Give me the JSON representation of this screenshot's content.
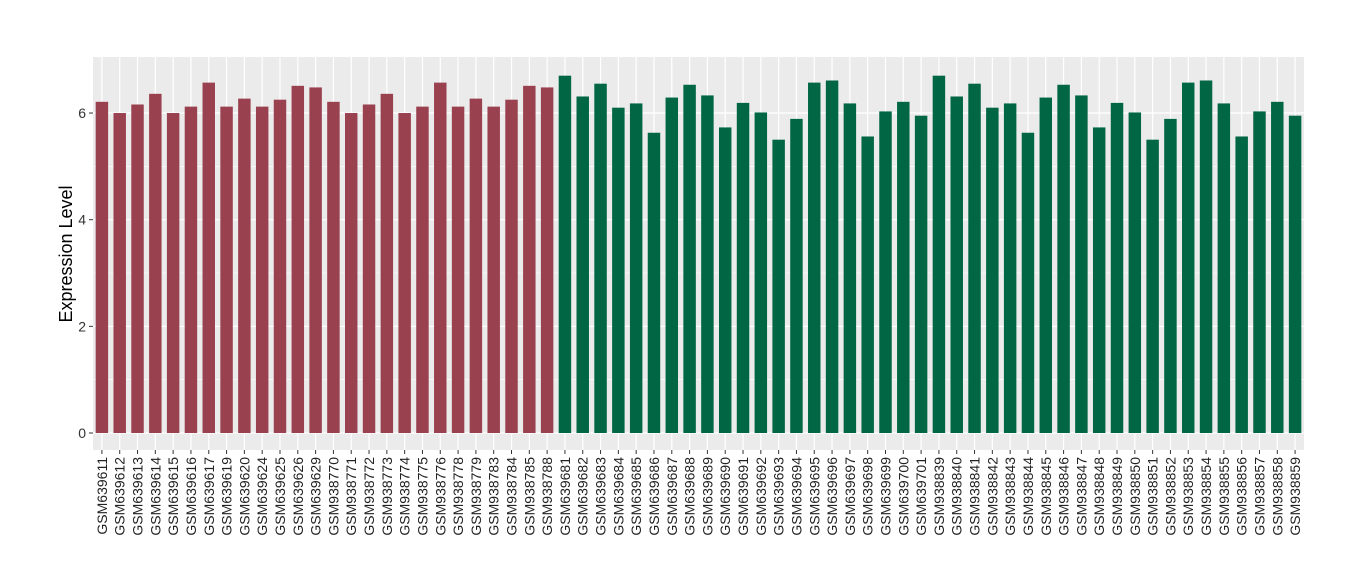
{
  "chart_data": {
    "type": "bar",
    "title": "",
    "xlabel": "",
    "ylabel": "Expression Level",
    "ylim": [
      0,
      7
    ],
    "yticks": [
      0,
      2,
      4,
      6
    ],
    "grid": true,
    "colors": {
      "group1": "#9a4150",
      "group2": "#006644",
      "panel": "#ebebeb",
      "grid": "#ffffff"
    },
    "categories": [
      "GSM639611",
      "GSM639612",
      "GSM639613",
      "GSM639614",
      "GSM639615",
      "GSM639616",
      "GSM639617",
      "GSM639619",
      "GSM639620",
      "GSM639624",
      "GSM639625",
      "GSM639626",
      "GSM639629",
      "GSM938770",
      "GSM938771",
      "GSM938772",
      "GSM938773",
      "GSM938774",
      "GSM938775",
      "GSM938776",
      "GSM938778",
      "GSM938779",
      "GSM938783",
      "GSM938784",
      "GSM938785",
      "GSM938788",
      "GSM639681",
      "GSM639682",
      "GSM639683",
      "GSM639684",
      "GSM639685",
      "GSM639686",
      "GSM639687",
      "GSM639688",
      "GSM639689",
      "GSM639690",
      "GSM639691",
      "GSM639692",
      "GSM639693",
      "GSM639694",
      "GSM639695",
      "GSM639696",
      "GSM639697",
      "GSM639698",
      "GSM639699",
      "GSM639700",
      "GSM639701",
      "GSM938839",
      "GSM938840",
      "GSM938841",
      "GSM938842",
      "GSM938843",
      "GSM938844",
      "GSM938845",
      "GSM938846",
      "GSM938847",
      "GSM938848",
      "GSM938849",
      "GSM938850",
      "GSM938851",
      "GSM938852",
      "GSM938853",
      "GSM938854",
      "GSM938855",
      "GSM938856",
      "GSM938857",
      "GSM938858",
      "GSM938859"
    ],
    "values": [
      6.21,
      6.0,
      6.16,
      6.36,
      6.0,
      6.12,
      6.57,
      6.12,
      6.27,
      6.12,
      6.25,
      6.51,
      6.48,
      6.21,
      6.0,
      6.16,
      6.36,
      6.0,
      6.12,
      6.57,
      6.12,
      6.27,
      6.12,
      6.25,
      6.51,
      6.48,
      6.7,
      6.31,
      6.55,
      6.1,
      6.18,
      5.63,
      6.29,
      6.53,
      6.33,
      5.73,
      6.19,
      6.01,
      5.5,
      5.89,
      6.57,
      6.61,
      6.18,
      5.56,
      6.03,
      6.21,
      5.95,
      6.7,
      6.31,
      6.55,
      6.1,
      6.18,
      5.63,
      6.29,
      6.53,
      6.33,
      5.73,
      6.19,
      6.01,
      5.5,
      5.89,
      6.57,
      6.61,
      6.18,
      5.56,
      6.03,
      6.21,
      5.95
    ],
    "groups": [
      "group1",
      "group1",
      "group1",
      "group1",
      "group1",
      "group1",
      "group1",
      "group1",
      "group1",
      "group1",
      "group1",
      "group1",
      "group1",
      "group1",
      "group1",
      "group1",
      "group1",
      "group1",
      "group1",
      "group1",
      "group1",
      "group1",
      "group1",
      "group1",
      "group1",
      "group1",
      "group2",
      "group2",
      "group2",
      "group2",
      "group2",
      "group2",
      "group2",
      "group2",
      "group2",
      "group2",
      "group2",
      "group2",
      "group2",
      "group2",
      "group2",
      "group2",
      "group2",
      "group2",
      "group2",
      "group2",
      "group2",
      "group2",
      "group2",
      "group2",
      "group2",
      "group2",
      "group2",
      "group2",
      "group2",
      "group2",
      "group2",
      "group2",
      "group2",
      "group2",
      "group2",
      "group2",
      "group2",
      "group2",
      "group2",
      "group2",
      "group2",
      "group2"
    ]
  }
}
